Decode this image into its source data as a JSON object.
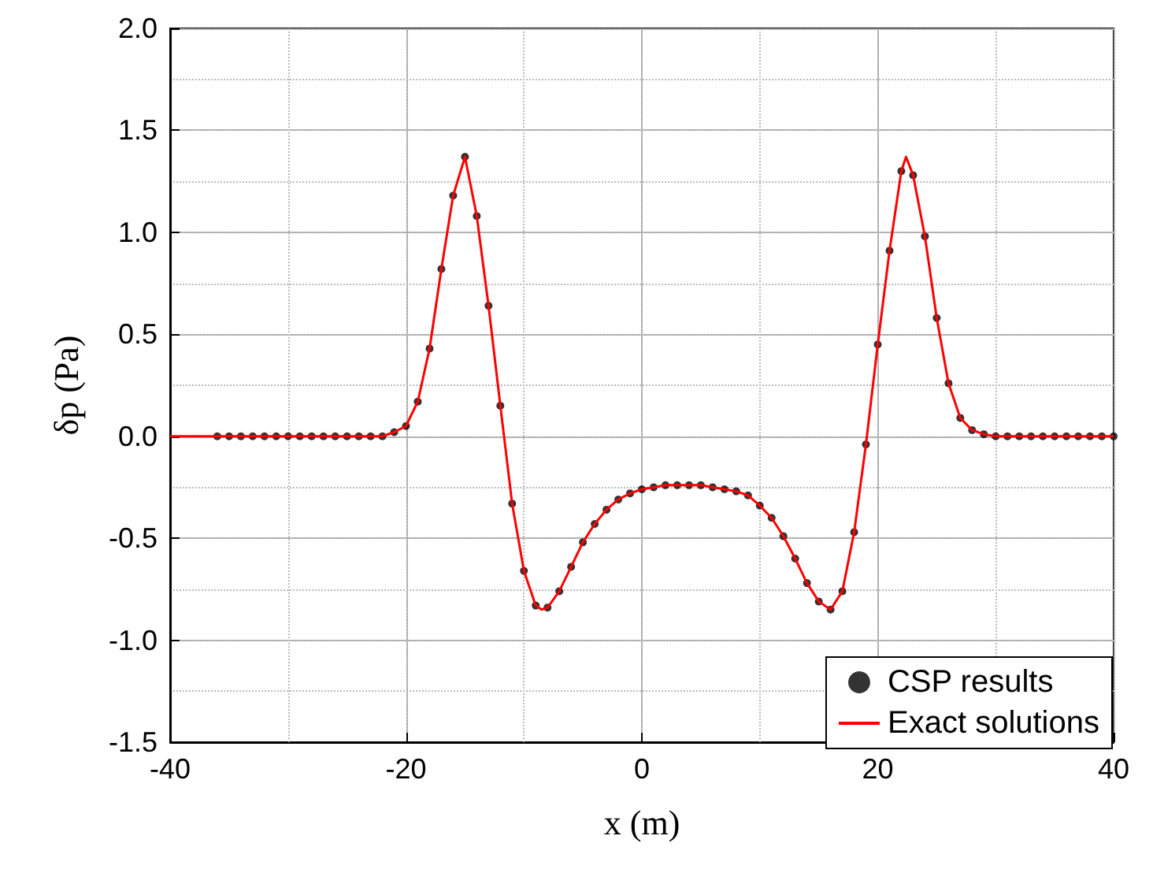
{
  "chart_data": {
    "type": "scatter",
    "xlabel": "x (m)",
    "ylabel": "δp (Pa)",
    "xlim": [
      -40,
      40
    ],
    "xticks": [
      -40,
      -20,
      0,
      20,
      40
    ],
    "ylim": [
      -1.5,
      2.0
    ],
    "yticks": [
      {
        "value": -1.5,
        "label": "-1.5"
      },
      {
        "value": -1,
        "label": "-1.0"
      },
      {
        "value": -0.5,
        "label": "-0.5"
      },
      {
        "value": 0,
        "label": "0.0"
      },
      {
        "value": 0.5,
        "label": "0.5"
      },
      {
        "value": 1,
        "label": "1.0"
      },
      {
        "value": 1.5,
        "label": "1.5"
      },
      {
        "value": 2,
        "label": "2.0"
      }
    ],
    "grid": true,
    "legend": "bottom right",
    "series": [
      {
        "name": "CSP results",
        "marker": "circle",
        "color": "#000000",
        "x": [
          -36,
          -35,
          -34,
          -33,
          -32,
          -31,
          -30,
          -29,
          -28,
          -27,
          -26,
          -25,
          -24,
          -23,
          -22,
          -21,
          -20,
          -19,
          -18,
          -17,
          -16,
          -15,
          -14,
          -13,
          -12,
          -11,
          -10,
          -9,
          -8,
          -7,
          -6,
          -5,
          -4,
          -3,
          -2,
          -1,
          0,
          1,
          2,
          3,
          4,
          5,
          6,
          7,
          8,
          9,
          10,
          11,
          12,
          13,
          14,
          15,
          16,
          17,
          18,
          19,
          20,
          21,
          22,
          23,
          24,
          25,
          26,
          27,
          28,
          29,
          30,
          31,
          32,
          33,
          34,
          35,
          36,
          37,
          38,
          39,
          40
        ],
        "values": [
          0,
          0,
          0,
          0,
          0,
          0,
          0,
          0,
          0,
          0,
          0,
          0,
          0,
          0,
          0,
          0.02,
          0.05,
          0.17,
          0.43,
          0.82,
          1.18,
          1.37,
          1.08,
          0.64,
          0.15,
          -0.33,
          -0.66,
          -0.83,
          -0.84,
          -0.76,
          -0.64,
          -0.52,
          -0.43,
          -0.36,
          -0.31,
          -0.28,
          -0.26,
          -0.25,
          -0.24,
          -0.24,
          -0.24,
          -0.24,
          -0.25,
          -0.26,
          -0.27,
          -0.29,
          -0.34,
          -0.4,
          -0.49,
          -0.6,
          -0.72,
          -0.81,
          -0.85,
          -0.76,
          -0.47,
          -0.04,
          0.45,
          0.91,
          1.3,
          1.28,
          0.98,
          0.58,
          0.26,
          0.09,
          0.03,
          0.01,
          0,
          0,
          0,
          0,
          0,
          0,
          0,
          0,
          0,
          0,
          0
        ]
      },
      {
        "name": "Exact solutions",
        "type": "line",
        "marker": "none",
        "color": "#ff0000",
        "x": [
          -40,
          -30,
          -23,
          -22,
          -21,
          -20,
          -19,
          -18,
          -17,
          -16,
          -15,
          -14,
          -13,
          -12,
          -11,
          -10,
          -9,
          -8.5,
          -8,
          -7,
          -6,
          -5,
          -4,
          -3,
          -2,
          -1,
          0,
          1,
          2,
          3,
          4,
          5,
          6,
          7,
          8,
          9,
          10,
          11,
          12,
          13,
          14,
          15,
          16,
          17,
          18,
          19,
          20,
          21,
          22,
          22.4,
          23,
          24,
          25,
          26,
          27,
          28,
          29,
          30,
          40
        ],
        "values": [
          0,
          0,
          0,
          0,
          0.02,
          0.05,
          0.17,
          0.43,
          0.82,
          1.18,
          1.37,
          1.08,
          0.64,
          0.15,
          -0.33,
          -0.66,
          -0.83,
          -0.85,
          -0.84,
          -0.76,
          -0.64,
          -0.52,
          -0.43,
          -0.36,
          -0.31,
          -0.28,
          -0.26,
          -0.25,
          -0.24,
          -0.24,
          -0.24,
          -0.24,
          -0.25,
          -0.26,
          -0.27,
          -0.29,
          -0.34,
          -0.4,
          -0.49,
          -0.6,
          -0.72,
          -0.81,
          -0.85,
          -0.76,
          -0.47,
          -0.04,
          0.45,
          0.91,
          1.3,
          1.37,
          1.28,
          0.98,
          0.58,
          0.26,
          0.09,
          0.03,
          0.01,
          0,
          0
        ]
      }
    ]
  }
}
